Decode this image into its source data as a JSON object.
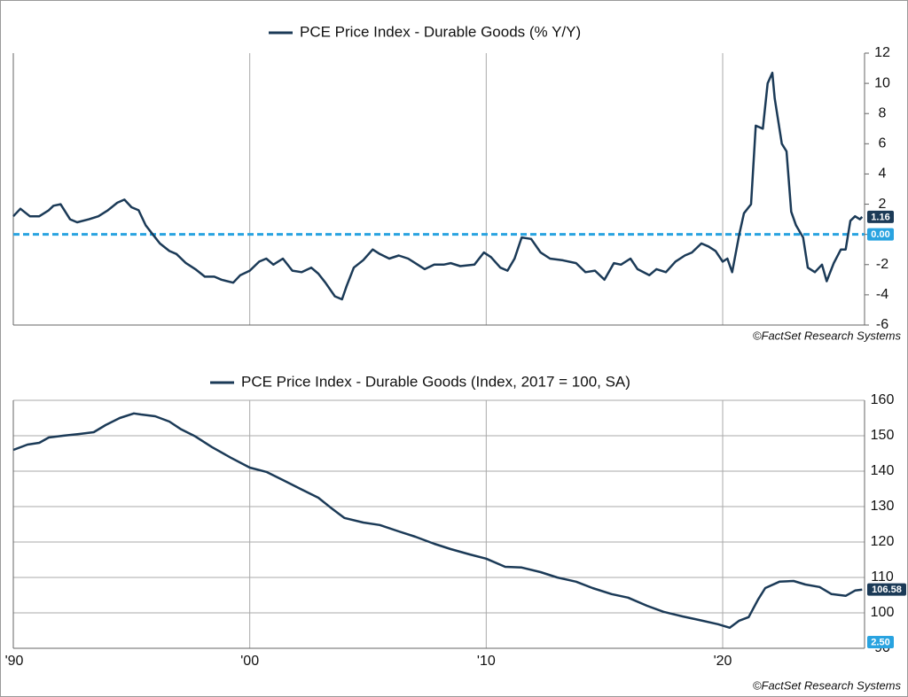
{
  "chart_data": [
    {
      "type": "line",
      "series": [
        {
          "name": "PCE Price Index - Durable Goods (% Y/Y)",
          "color": "#1b3a57",
          "x": [
            1990.0,
            1990.3,
            1990.7,
            1991.1,
            1991.5,
            1991.7,
            1992.0,
            1992.4,
            1992.7,
            1993.2,
            1993.6,
            1994.0,
            1994.4,
            1994.7,
            1995.0,
            1995.3,
            1995.6,
            1995.9,
            1996.2,
            1996.6,
            1996.9,
            1997.3,
            1997.7,
            1998.1,
            1998.5,
            1998.8,
            1999.3,
            1999.6,
            2000.0,
            2000.4,
            2000.7,
            2001.0,
            2001.4,
            2001.8,
            2002.2,
            2002.6,
            2002.9,
            2003.2,
            2003.6,
            2003.9,
            2004.1,
            2004.4,
            2004.8,
            2005.2,
            2005.5,
            2005.9,
            2006.3,
            2006.7,
            2007.0,
            2007.4,
            2007.8,
            2008.2,
            2008.5,
            2008.9,
            2009.5,
            2009.9,
            2010.2,
            2010.6,
            2010.9,
            2011.2,
            2011.5,
            2011.9,
            2012.3,
            2012.7,
            2013.2,
            2013.8,
            2014.2,
            2014.6,
            2015.0,
            2015.4,
            2015.7,
            2016.1,
            2016.4,
            2016.9,
            2017.2,
            2017.6,
            2018.0,
            2018.4,
            2018.7,
            2019.1,
            2019.4,
            2019.7,
            2020.0,
            2020.2,
            2020.4,
            2020.7,
            2020.9,
            2021.2,
            2021.4,
            2021.7,
            2021.9,
            2022.1,
            2022.2,
            2022.5,
            2022.7,
            2022.9,
            2023.1,
            2023.4,
            2023.6,
            2023.9,
            2024.2,
            2024.4,
            2024.7,
            2025.0,
            2025.2,
            2025.4,
            2025.6,
            2025.8,
            2025.9
          ],
          "values": [
            1.2,
            1.7,
            1.2,
            1.2,
            1.6,
            1.9,
            2.0,
            1.0,
            0.8,
            1.0,
            1.2,
            1.6,
            2.1,
            2.3,
            1.8,
            1.6,
            0.6,
            0.0,
            -0.6,
            -1.1,
            -1.3,
            -1.9,
            -2.3,
            -2.8,
            -2.8,
            -3.0,
            -3.2,
            -2.7,
            -2.4,
            -1.8,
            -1.6,
            -2.0,
            -1.6,
            -2.4,
            -2.5,
            -2.2,
            -2.6,
            -3.2,
            -4.1,
            -4.3,
            -3.4,
            -2.2,
            -1.7,
            -1.0,
            -1.3,
            -1.6,
            -1.4,
            -1.6,
            -1.9,
            -2.3,
            -2.0,
            -2.0,
            -1.9,
            -2.1,
            -2.0,
            -1.2,
            -1.5,
            -2.2,
            -2.4,
            -1.6,
            -0.2,
            -0.3,
            -1.2,
            -1.6,
            -1.7,
            -1.9,
            -2.5,
            -2.4,
            -3.0,
            -1.9,
            -2.0,
            -1.6,
            -2.3,
            -2.7,
            -2.3,
            -2.5,
            -1.8,
            -1.4,
            -1.2,
            -0.6,
            -0.8,
            -1.1,
            -1.8,
            -1.6,
            -2.5,
            0.0,
            1.4,
            2.0,
            7.2,
            7.0,
            10.0,
            10.7,
            9.0,
            6.0,
            5.5,
            1.5,
            0.6,
            -0.2,
            -2.2,
            -2.5,
            -2.0,
            -3.1,
            -1.9,
            -1.0,
            -1.0,
            0.9,
            1.2,
            1.0,
            1.16
          ]
        }
      ],
      "xlim": [
        1990,
        2026
      ],
      "xgrid": [
        1990,
        2000,
        2010,
        2020
      ],
      "ylim": [
        -6,
        12
      ],
      "yticks": [
        -6,
        -4,
        -2,
        0,
        2,
        4,
        6,
        8,
        10,
        12
      ],
      "grid": false,
      "value_flags": [
        {
          "value": 1.16,
          "label": "1.16",
          "color": "#1b3a57"
        },
        {
          "value": 0,
          "label": "0.00",
          "color": "#29a3e0",
          "dashed": true
        }
      ],
      "source": "©FactSet Research Systems"
    },
    {
      "type": "line",
      "series": [
        {
          "name": "PCE Price Index - Durable Goods (Index, 2017 = 100, SA)",
          "color": "#1b3a57",
          "x": [
            1990.0,
            1990.6,
            1991.1,
            1991.5,
            1992.1,
            1992.8,
            1993.4,
            1993.9,
            1994.5,
            1995.1,
            1995.4,
            1996.0,
            1996.6,
            1997.1,
            1997.7,
            1998.4,
            1999.2,
            2000.0,
            2000.7,
            2001.4,
            2002.2,
            2002.9,
            2003.5,
            2004.0,
            2004.8,
            2005.5,
            2006.3,
            2007.0,
            2007.8,
            2008.5,
            2009.3,
            2010.0,
            2010.8,
            2011.5,
            2012.3,
            2013.0,
            2013.8,
            2014.5,
            2015.3,
            2016.0,
            2016.8,
            2017.5,
            2018.3,
            2019.0,
            2019.8,
            2020.3,
            2020.7,
            2021.1,
            2021.5,
            2021.8,
            2022.4,
            2023.0,
            2023.5,
            2024.1,
            2024.6,
            2025.2,
            2025.6,
            2025.9
          ],
          "values": [
            146,
            147.5,
            148,
            149.5,
            150,
            150.5,
            151,
            153,
            155,
            156.3,
            156,
            155.5,
            154,
            151.8,
            149.8,
            146.8,
            143.8,
            141,
            139.8,
            137.5,
            134.8,
            132.5,
            129.3,
            126.8,
            125.5,
            124.8,
            123,
            121.5,
            119.5,
            118,
            116.5,
            115.3,
            113,
            112.8,
            111.5,
            110,
            108.8,
            107,
            105.3,
            104.3,
            102,
            100.3,
            99,
            98,
            96.8,
            95.8,
            97.8,
            98.8,
            103.8,
            107,
            108.8,
            109,
            108,
            107.3,
            105.3,
            104.8,
            106.3,
            106.58
          ]
        }
      ],
      "xlim": [
        1990,
        2026
      ],
      "xticks": [
        {
          "value": 1990,
          "label": "'90"
        },
        {
          "value": 2000,
          "label": "'00"
        },
        {
          "value": 2010,
          "label": "'10"
        },
        {
          "value": 2020,
          "label": "'20"
        }
      ],
      "ylim": [
        90,
        160
      ],
      "yticks": [
        90,
        100,
        110,
        120,
        130,
        140,
        150,
        160
      ],
      "grid": true,
      "value_flags": [
        {
          "value": 106.58,
          "label": "106.58",
          "color": "#1b3a57"
        }
      ],
      "annotations": [
        {
          "label": "2.50",
          "color": "#29a3e0"
        }
      ],
      "source": "©FactSet Research Systems"
    }
  ]
}
